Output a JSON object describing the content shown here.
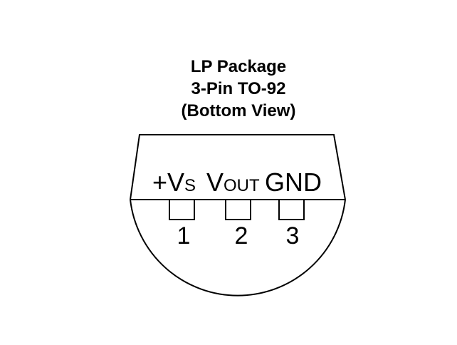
{
  "title": {
    "line1": "LP Package",
    "line2": "3-Pin TO-92",
    "line3": "(Bottom View)"
  },
  "pins": [
    {
      "main": "+V",
      "sub": "S",
      "number": "1"
    },
    {
      "main": "V",
      "sub": "OUT",
      "number": "2"
    },
    {
      "main": "GND",
      "sub": "",
      "number": "3"
    }
  ],
  "colors": {
    "stroke": "#000000",
    "background": "#ffffff"
  }
}
